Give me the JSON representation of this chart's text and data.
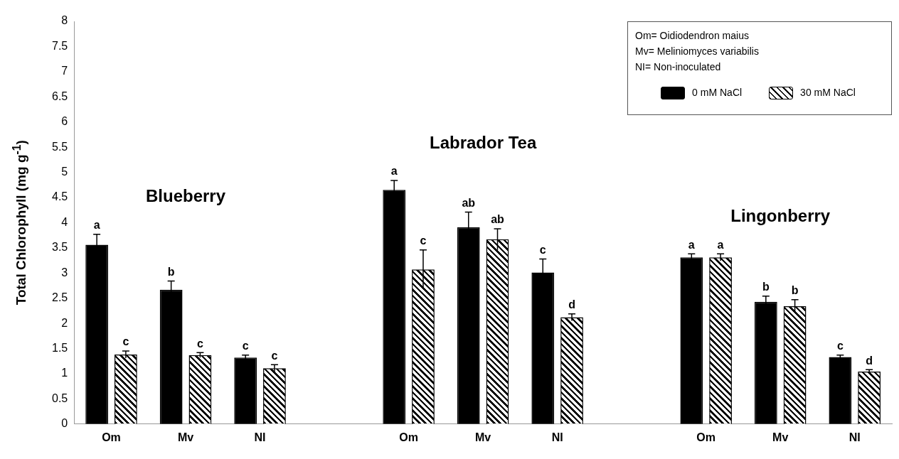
{
  "chart_data": {
    "type": "bar",
    "ylabel": "Total Chlorophyll (mg g$^{-1}$)",
    "categories": [
      "Om",
      "Mv",
      "NI",
      null,
      "Om",
      "Mv",
      "NI",
      null,
      "Om",
      "Mv",
      "NI"
    ],
    "series": [
      {
        "name": "0 mM NaCl",
        "color": "#000000",
        "values": [
          3.56,
          2.67,
          1.32,
          null,
          4.65,
          3.91,
          3.01,
          null,
          3.31,
          2.43,
          1.33
        ],
        "errors": [
          0.21,
          0.17,
          0.05,
          null,
          0.19,
          0.3,
          0.27,
          null,
          0.07,
          0.11,
          0.04
        ],
        "value_labels": [
          "a",
          "b",
          "c",
          null,
          "a",
          "ab",
          "c",
          null,
          "a",
          "b",
          "c"
        ]
      },
      {
        "name": "30 mM NaCl",
        "color": "#ffffff",
        "values": [
          1.38,
          1.37,
          1.11,
          null,
          3.07,
          3.67,
          2.12,
          null,
          3.31,
          2.34,
          1.04
        ],
        "errors": [
          0.07,
          0.05,
          0.07,
          null,
          0.39,
          0.21,
          0.07,
          null,
          0.07,
          0.13,
          0.04
        ],
        "value_labels": [
          "c",
          "c",
          "c",
          null,
          "c",
          "ab",
          "d",
          null,
          "a",
          "b",
          "d"
        ]
      }
    ],
    "ylim": [
      0,
      8
    ],
    "yticks": [
      0,
      0.5,
      1,
      1.5,
      2,
      2.5,
      3,
      3.5,
      4,
      4.5,
      5,
      5.5,
      6,
      6.5,
      7,
      7.5,
      8
    ],
    "legend": "top right",
    "annotations": [
      "Blueberry",
      "Labrador Tea",
      "Lingonberry",
      "Om= Oidiodendron maius",
      "Mv=  Meliniomyces variabilis",
      "NI= Non-inoculated"
    ]
  }
}
